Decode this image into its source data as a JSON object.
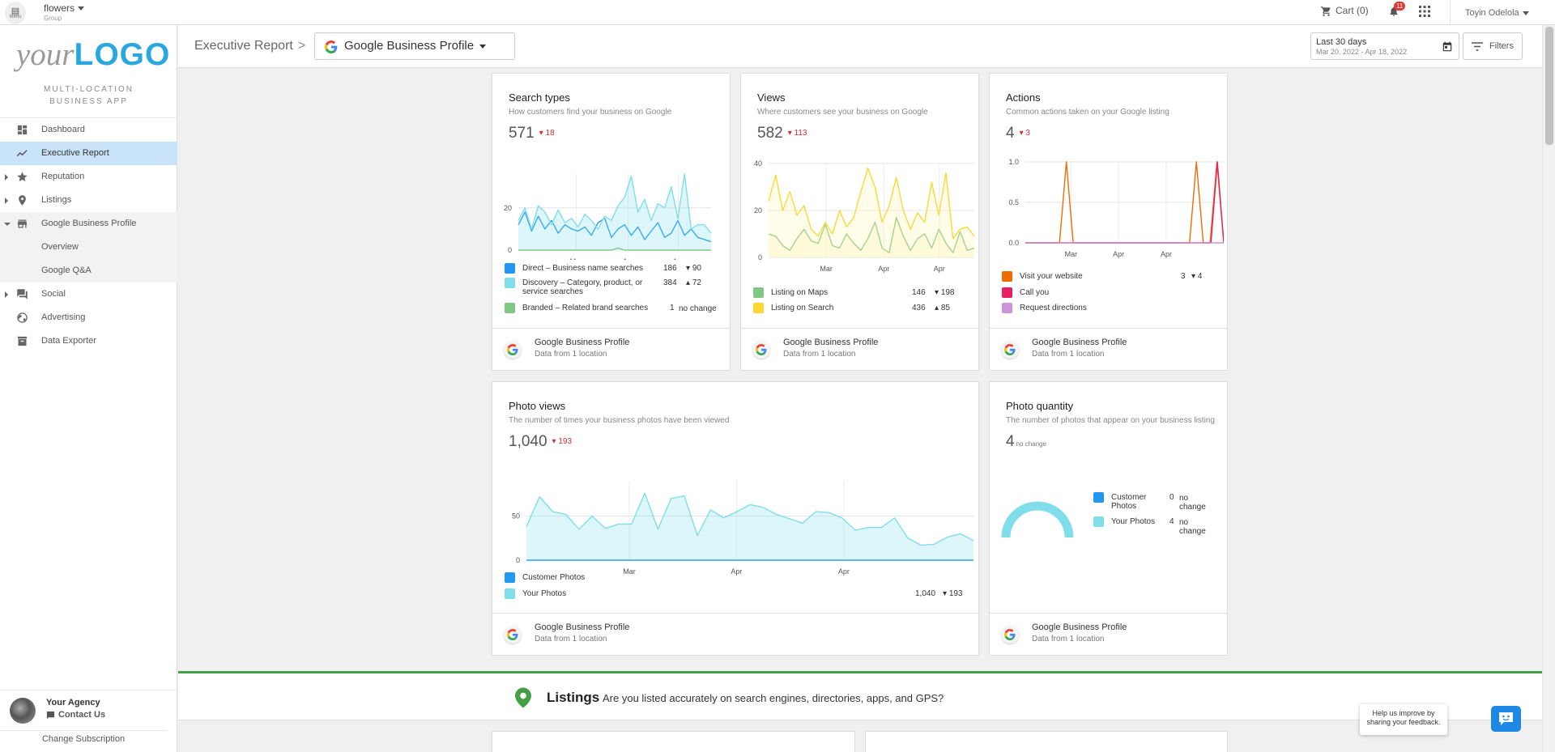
{
  "topbar": {
    "menu_label": "Menu",
    "account_name": "flowers",
    "account_type": "Group",
    "cart_label": "Cart (0)",
    "notifications_count": "11",
    "user_name": "Toyin Odelola"
  },
  "sidebar": {
    "logo_your": "your",
    "logo_brand": "LOGO",
    "tagline_1": "MULTI-LOCATION",
    "tagline_2": "BUSINESS APP",
    "items": [
      {
        "label": "Dashboard"
      },
      {
        "label": "Executive Report"
      },
      {
        "label": "Reputation"
      },
      {
        "label": "Listings"
      },
      {
        "label": "Google Business Profile"
      },
      {
        "label": "Overview"
      },
      {
        "label": "Google Q&A"
      },
      {
        "label": "Social"
      },
      {
        "label": "Advertising"
      },
      {
        "label": "Data Exporter"
      }
    ],
    "agency_name": "Your Agency",
    "contact_label": "Contact Us",
    "change_subscription": "Change Subscription"
  },
  "header": {
    "breadcrumb": "Executive Report",
    "breadcrumb_sep": ">",
    "product_select": "Google Business Profile",
    "date_label": "Last 30 days",
    "date_range": "Mar 20, 2022 - Apr 18, 2022",
    "filters_label": "Filters"
  },
  "colors": {
    "accent_blue": "#29a8e0",
    "direct": "#2196f3",
    "discovery": "#80deea",
    "branded": "#81c784",
    "maps": "#81c784",
    "search": "#fdd835",
    "website": "#ef6c00",
    "call": "#e91e63",
    "directions": "#ce93d8",
    "decrease": "#d32f2f",
    "increase": "#2e9a48"
  },
  "cards": {
    "search_types": {
      "title": "Search types",
      "desc": "How customers find your business on Google",
      "total": "571",
      "delta": "18",
      "legend": [
        {
          "label": "Direct – Business name searches",
          "value": "186",
          "delta": "90"
        },
        {
          "label": "Discovery – Category, product, or service searches",
          "value": "384",
          "delta": "72"
        },
        {
          "label": "Branded – Related brand searches",
          "value": "1",
          "delta": "no change"
        }
      ],
      "source": "Google Business Profile",
      "location": "Data from 1 location"
    },
    "views": {
      "title": "Views",
      "desc": "Where customers see your business on Google",
      "total": "582",
      "delta": "113",
      "legend": [
        {
          "label": "Listing on Maps",
          "value": "146",
          "delta": "198"
        },
        {
          "label": "Listing on Search",
          "value": "436",
          "delta": "85"
        }
      ],
      "source": "Google Business Profile",
      "location": "Data from 1 location"
    },
    "actions": {
      "title": "Actions",
      "desc": "Common actions taken on your Google listing",
      "total": "4",
      "delta": "3",
      "legend": [
        {
          "label": "Visit your website",
          "value": "3",
          "delta": "4"
        },
        {
          "label": "Call you"
        },
        {
          "label": "Request directions"
        }
      ],
      "source": "Google Business Profile",
      "location": "Data from 1 location"
    },
    "photo_views": {
      "title": "Photo views",
      "desc": "The number of times your business photos have been viewed",
      "total": "1,040",
      "delta": "193",
      "legend": [
        {
          "label": "Customer Photos"
        },
        {
          "label": "Your Photos",
          "value": "1,040",
          "delta": "193"
        }
      ],
      "source": "Google Business Profile",
      "location": "Data from 1 location"
    },
    "photo_quantity": {
      "title": "Photo quantity",
      "desc": "The number of photos that appear on your business listing",
      "total": "4",
      "delta": "no change",
      "legend": [
        {
          "label": "Customer Photos",
          "value": "0",
          "delta": "no change"
        },
        {
          "label": "Your Photos",
          "value": "4",
          "delta": "no change"
        }
      ],
      "source": "Google Business Profile",
      "location": "Data from 1 location"
    }
  },
  "chart_data": [
    {
      "type": "line",
      "title": "Search types",
      "x_ticks": [
        "Mar",
        "Apr",
        "Apr"
      ],
      "y_ticks": [
        "0",
        "20"
      ],
      "ylim": [
        0,
        36
      ],
      "series": [
        {
          "name": "Direct",
          "values": [
            12,
            18,
            9,
            16,
            10,
            14,
            8,
            12,
            10,
            9,
            11,
            7,
            13,
            15,
            6,
            10,
            12,
            7,
            11,
            5,
            9,
            13,
            6,
            8,
            14,
            7,
            10,
            6,
            5,
            4
          ]
        },
        {
          "name": "Discovery",
          "values": [
            14,
            20,
            10,
            21,
            18,
            12,
            19,
            13,
            15,
            11,
            17,
            14,
            10,
            16,
            14,
            21,
            25,
            35,
            18,
            24,
            14,
            22,
            20,
            30,
            15,
            36,
            10,
            12,
            12,
            8
          ]
        },
        {
          "name": "Branded",
          "values": [
            0,
            0,
            0,
            0,
            0,
            0,
            0,
            0,
            0,
            0,
            0,
            0,
            0,
            0,
            0,
            1,
            0,
            0,
            0,
            0,
            0,
            0,
            0,
            0,
            0,
            0,
            0,
            0,
            0,
            0
          ]
        }
      ]
    },
    {
      "type": "line",
      "title": "Views",
      "x_ticks": [
        "Mar",
        "Apr",
        "Apr"
      ],
      "y_ticks": [
        "0",
        "20",
        "40"
      ],
      "ylim": [
        0,
        40
      ],
      "series": [
        {
          "name": "Listing on Maps",
          "values": [
            10,
            9,
            5,
            3,
            8,
            12,
            7,
            6,
            14,
            5,
            4,
            10,
            6,
            3,
            8,
            15,
            4,
            2,
            17,
            9,
            3,
            8,
            10,
            4,
            12,
            6,
            2,
            11,
            3,
            4
          ]
        },
        {
          "name": "Listing on Search",
          "values": [
            24,
            35,
            20,
            28,
            18,
            22,
            12,
            9,
            15,
            10,
            20,
            13,
            17,
            28,
            38,
            30,
            15,
            22,
            34,
            20,
            12,
            19,
            15,
            32,
            18,
            36,
            8,
            12,
            13,
            9
          ]
        }
      ]
    },
    {
      "type": "line",
      "title": "Actions",
      "x_ticks": [
        "Mar",
        "Apr",
        "Apr"
      ],
      "y_ticks": [
        "0.0",
        "0.5",
        "1.0"
      ],
      "ylim": [
        0,
        1
      ],
      "series": [
        {
          "name": "Visit your website",
          "values": [
            0,
            0,
            0,
            0,
            0,
            0,
            1,
            0,
            0,
            0,
            0,
            0,
            0,
            0,
            0,
            0,
            0,
            0,
            0,
            0,
            0,
            0,
            0,
            0,
            0,
            1,
            0,
            0,
            1,
            0
          ]
        },
        {
          "name": "Call you",
          "values": [
            0,
            0,
            0,
            0,
            0,
            0,
            0,
            0,
            0,
            0,
            0,
            0,
            0,
            0,
            0,
            0,
            0,
            0,
            0,
            0,
            0,
            0,
            0,
            0,
            0,
            0,
            0,
            0,
            0,
            0,
            1,
            0
          ]
        },
        {
          "name": "Request directions",
          "values": [
            0,
            0,
            0,
            0,
            0,
            0,
            0,
            0,
            0,
            0,
            0,
            0,
            0,
            0,
            0,
            0,
            0,
            0,
            0,
            0,
            0,
            0,
            0,
            0,
            0,
            0,
            0,
            0,
            0,
            0,
            0
          ]
        }
      ]
    },
    {
      "type": "area",
      "title": "Photo views",
      "x_ticks": [
        "Mar",
        "Apr",
        "Apr"
      ],
      "y_ticks": [
        "0",
        "50"
      ],
      "ylim": [
        0,
        90
      ],
      "series": [
        {
          "name": "Customer Photos",
          "values": [
            0,
            0,
            0,
            0,
            0,
            0,
            0,
            0,
            0,
            0,
            0,
            0,
            0,
            0,
            0,
            0,
            0,
            0,
            0,
            0,
            0,
            0,
            0,
            0,
            0,
            0,
            0,
            0,
            0,
            0,
            0,
            0,
            0,
            0,
            0
          ]
        },
        {
          "name": "Your Photos",
          "values": [
            38,
            72,
            55,
            52,
            35,
            50,
            36,
            41,
            41,
            76,
            35,
            70,
            73,
            28,
            57,
            48,
            55,
            63,
            60,
            52,
            47,
            42,
            55,
            54,
            48,
            34,
            37,
            37,
            48,
            25,
            17,
            18,
            26,
            30,
            22
          ]
        }
      ]
    },
    {
      "type": "pie",
      "title": "Photo quantity",
      "categories": [
        "Customer Photos",
        "Your Photos"
      ],
      "values": [
        0,
        4
      ]
    }
  ],
  "listings": {
    "title": "Listings",
    "question": "Are you listed accurately on search engines, directories, apps, and GPS?"
  },
  "feedback": {
    "bubble": "Help us improve by sharing your feedback."
  }
}
